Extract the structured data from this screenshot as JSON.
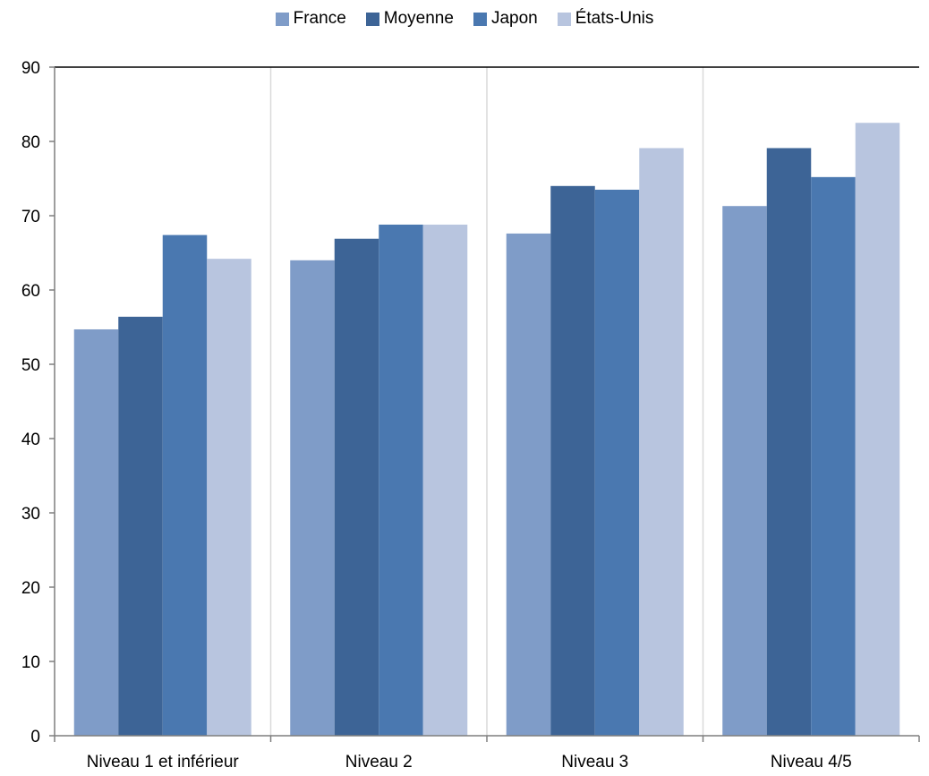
{
  "chart_data": {
    "type": "bar",
    "categories": [
      "Niveau 1 et inférieur",
      "Niveau 2",
      "Niveau 3",
      "Niveau 4/5"
    ],
    "series": [
      {
        "name": "France",
        "color": "#7f9cc8",
        "values": [
          54.7,
          64.0,
          67.6,
          71.3
        ]
      },
      {
        "name": "Moyenne",
        "color": "#3d6496",
        "values": [
          56.4,
          66.9,
          74.0,
          79.1
        ]
      },
      {
        "name": "Japon",
        "color": "#4a78b0",
        "values": [
          67.4,
          68.8,
          73.5,
          75.2
        ]
      },
      {
        "name": "États-Unis",
        "color": "#b8c5df",
        "values": [
          64.2,
          68.8,
          79.1,
          82.5
        ]
      }
    ],
    "ylim": [
      0,
      90
    ],
    "yticks": [
      0,
      10,
      20,
      30,
      40,
      50,
      60,
      70,
      80,
      90
    ],
    "grid": "vertical",
    "legend_position": "top"
  }
}
